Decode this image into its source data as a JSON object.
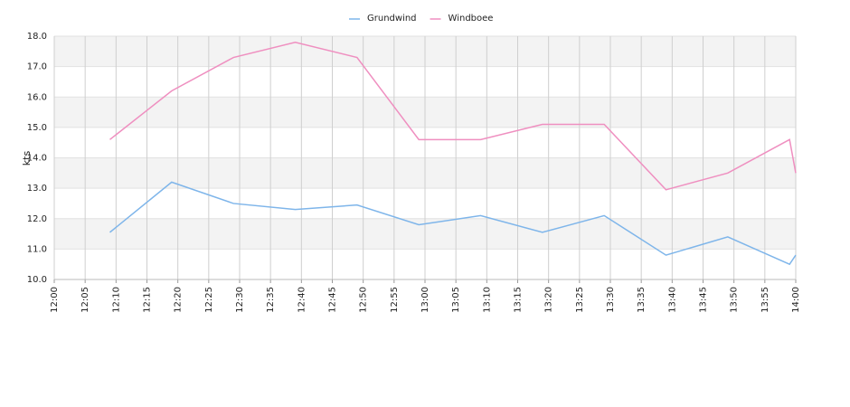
{
  "chart_data": {
    "type": "line",
    "y_label": "kts",
    "x": [
      "12:09",
      "12:19",
      "12:29",
      "12:39",
      "12:49",
      "12:59",
      "13:09",
      "13:19",
      "13:29",
      "13:39",
      "13:49",
      "13:59",
      "14:00"
    ],
    "series": [
      {
        "name": "Grundwind",
        "color": "#7eb5ea",
        "values": [
          11.55,
          13.2,
          12.5,
          12.3,
          12.45,
          11.8,
          12.1,
          11.55,
          12.1,
          10.8,
          11.4,
          10.5,
          10.8
        ]
      },
      {
        "name": "Windboee",
        "color": "#ef8fc0",
        "values": [
          14.6,
          16.2,
          17.3,
          17.8,
          17.3,
          14.6,
          14.6,
          15.1,
          15.1,
          12.95,
          13.5,
          14.6,
          13.5
        ]
      }
    ],
    "xlim": [
      "12:00",
      "14:00"
    ],
    "xticks": [
      "12:00",
      "12:05",
      "12:10",
      "12:15",
      "12:20",
      "12:25",
      "12:30",
      "12:35",
      "12:40",
      "12:45",
      "12:50",
      "12:55",
      "13:00",
      "13:05",
      "13:10",
      "13:15",
      "13:20",
      "13:25",
      "13:30",
      "13:35",
      "13:40",
      "13:45",
      "13:50",
      "13:55",
      "14:00"
    ],
    "ylim": [
      10,
      18
    ],
    "yticks": [
      {
        "value": 10,
        "label": "10.0"
      },
      {
        "value": 11,
        "label": "11.0"
      },
      {
        "value": 12,
        "label": "12.0"
      },
      {
        "value": 13,
        "label": "13.0"
      },
      {
        "value": 14,
        "label": "14.0"
      },
      {
        "value": 15,
        "label": "15.0"
      },
      {
        "value": 16,
        "label": "16.0"
      },
      {
        "value": 17,
        "label": "17.0"
      },
      {
        "value": 18,
        "label": "18.0"
      }
    ],
    "grid": true,
    "legend": "top"
  }
}
